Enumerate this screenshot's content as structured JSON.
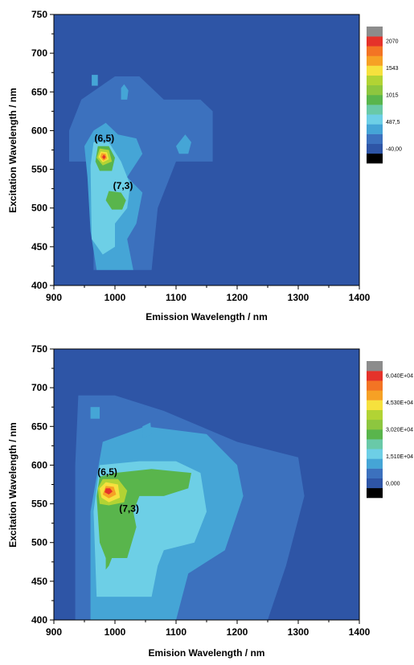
{
  "chart_data": [
    {
      "type": "heatmap",
      "title": "",
      "xlabel": "Emission Wavelength / nm",
      "ylabel": "Excitation Wavelength / nm",
      "xlim": [
        900,
        1400
      ],
      "ylim": [
        400,
        750
      ],
      "x_ticks": [
        "900",
        "1000",
        "1100",
        "1200",
        "1300",
        "1400"
      ],
      "y_ticks": [
        "400",
        "450",
        "500",
        "550",
        "600",
        "650",
        "700",
        "750"
      ],
      "colorbar": {
        "labels": [
          "2070",
          "1543",
          "1015",
          "487,5",
          "-40,00"
        ],
        "min": -40,
        "max": 2070
      },
      "peaks": [
        {
          "label": "(6,5)",
          "emission": 980,
          "excitation": 567
        },
        {
          "label": "(7,3)",
          "emission": 1000,
          "excitation": 508
        }
      ],
      "regions": [
        {
          "level": 1,
          "points": [
            [
              925,
              560
            ],
            [
              965,
              560
            ],
            [
              965,
              420
            ],
            [
              1060,
              420
            ],
            [
              1070,
              500
            ],
            [
              1100,
              560
            ],
            [
              1160,
              560
            ],
            [
              1160,
              625
            ],
            [
              1140,
              640
            ],
            [
              1080,
              640
            ],
            [
              1040,
              670
            ],
            [
              1000,
              670
            ],
            [
              945,
              640
            ],
            [
              925,
              600
            ]
          ]
        },
        {
          "level": 2,
          "points": [
            [
              955,
              540
            ],
            [
              960,
              470
            ],
            [
              970,
              420
            ],
            [
              1030,
              420
            ],
            [
              1020,
              460
            ],
            [
              1035,
              480
            ],
            [
              1045,
              520
            ],
            [
              1020,
              540
            ],
            [
              1045,
              570
            ],
            [
              1035,
              590
            ],
            [
              1005,
              595
            ],
            [
              985,
              610
            ],
            [
              965,
              600
            ],
            [
              950,
              580
            ]
          ]
        },
        {
          "level": 2,
          "points": [
            [
              962,
              658
            ],
            [
              972,
              658
            ],
            [
              972,
              672
            ],
            [
              962,
              672
            ]
          ]
        },
        {
          "level": 2,
          "points": [
            [
              1010,
              640
            ],
            [
              1020,
              640
            ],
            [
              1022,
              652
            ],
            [
              1015,
              660
            ],
            [
              1010,
              655
            ]
          ]
        },
        {
          "level": 2,
          "points": [
            [
              1100,
              580
            ],
            [
              1115,
              595
            ],
            [
              1125,
              585
            ],
            [
              1120,
              570
            ],
            [
              1105,
              570
            ]
          ]
        },
        {
          "level": 3,
          "points": [
            [
              962,
              460
            ],
            [
              980,
              440
            ],
            [
              1000,
              450
            ],
            [
              1000,
              480
            ],
            [
              1020,
              500
            ],
            [
              1025,
              530
            ],
            [
              1010,
              560
            ],
            [
              990,
              585
            ],
            [
              965,
              585
            ],
            [
              960,
              555
            ]
          ]
        },
        {
          "level": 4,
          "points": [
            [
              985,
              510
            ],
            [
              995,
              498
            ],
            [
              1012,
              498
            ],
            [
              1018,
              510
            ],
            [
              1010,
              520
            ],
            [
              990,
              522
            ]
          ]
        },
        {
          "level": 4,
          "points": [
            [
              968,
              560
            ],
            [
              975,
              548
            ],
            [
              995,
              548
            ],
            [
              1000,
              565
            ],
            [
              990,
              580
            ],
            [
              972,
              580
            ]
          ]
        },
        {
          "level": 5,
          "points": [
            [
              970,
              565
            ],
            [
              980,
              555
            ],
            [
              995,
              560
            ],
            [
              990,
              575
            ],
            [
              975,
              577
            ]
          ]
        },
        {
          "level": 6,
          "points": [
            [
              973,
              566
            ],
            [
              980,
              559
            ],
            [
              990,
              563
            ],
            [
              987,
              572
            ],
            [
              977,
              573
            ]
          ]
        },
        {
          "level": 7,
          "points": [
            [
              976,
              566
            ],
            [
              981,
              561
            ],
            [
              987,
              564
            ],
            [
              985,
              570
            ],
            [
              978,
              571
            ]
          ]
        },
        {
          "level": 8,
          "points": [
            [
              979,
              566
            ],
            [
              982,
              563
            ],
            [
              985,
              566
            ],
            [
              982,
              569
            ]
          ]
        }
      ]
    },
    {
      "type": "heatmap",
      "title": "",
      "xlabel": "Emision Wavelength / nm",
      "ylabel": "Excitation Wavelength / nm",
      "xlim": [
        900,
        1400
      ],
      "ylim": [
        400,
        750
      ],
      "x_ticks": [
        "900",
        "1000",
        "1100",
        "1200",
        "1300",
        "1400"
      ],
      "y_ticks": [
        "400",
        "450",
        "500",
        "550",
        "600",
        "650",
        "700",
        "750"
      ],
      "colorbar": {
        "labels": [
          "6,040E+04",
          "4,530E+04",
          "3,020E+04",
          "1,510E+04",
          "0,000"
        ],
        "min": 0,
        "max": 60400
      },
      "peaks": [
        {
          "label": "(6,5)",
          "emission": 985,
          "excitation": 568
        },
        {
          "label": "(7,3)",
          "emission": 1010,
          "excitation": 523
        }
      ],
      "regions": [
        {
          "level": 1,
          "points": [
            [
              935,
              400
            ],
            [
              1250,
              400
            ],
            [
              1280,
              470
            ],
            [
              1310,
              560
            ],
            [
              1300,
              610
            ],
            [
              1200,
              630
            ],
            [
              1080,
              670
            ],
            [
              1000,
              690
            ],
            [
              940,
              690
            ],
            [
              935,
              600
            ]
          ]
        },
        {
          "level": 2,
          "points": [
            [
              960,
              400
            ],
            [
              1100,
              400
            ],
            [
              1120,
              460
            ],
            [
              1180,
              490
            ],
            [
              1210,
              560
            ],
            [
              1200,
              600
            ],
            [
              1150,
              640
            ],
            [
              1050,
              650
            ],
            [
              980,
              630
            ],
            [
              960,
              540
            ]
          ]
        },
        {
          "level": 2,
          "points": [
            [
              960,
              660
            ],
            [
              975,
              660
            ],
            [
              975,
              675
            ],
            [
              960,
              675
            ]
          ]
        },
        {
          "level": 2,
          "points": [
            [
              1045,
              635
            ],
            [
              1060,
              640
            ],
            [
              1058,
              655
            ],
            [
              1045,
              650
            ]
          ]
        },
        {
          "level": 3,
          "points": [
            [
              970,
              430
            ],
            [
              1060,
              430
            ],
            [
              1070,
              470
            ],
            [
              1080,
              490
            ],
            [
              1130,
              500
            ],
            [
              1150,
              540
            ],
            [
              1140,
              590
            ],
            [
              1100,
              605
            ],
            [
              1040,
              605
            ],
            [
              975,
              600
            ],
            [
              965,
              540
            ]
          ]
        },
        {
          "level": 4,
          "points": [
            [
              975,
              500
            ],
            [
              985,
              480
            ],
            [
              1020,
              480
            ],
            [
              1035,
              520
            ],
            [
              1030,
              540
            ],
            [
              1040,
              560
            ],
            [
              1080,
              560
            ],
            [
              1120,
              570
            ],
            [
              1125,
              590
            ],
            [
              1060,
              595
            ],
            [
              1000,
              590
            ],
            [
              975,
              585
            ],
            [
              970,
              560
            ]
          ]
        },
        {
          "level": 4,
          "points": [
            [
              985,
              465
            ],
            [
              990,
              470
            ],
            [
              995,
              480
            ],
            [
              985,
              480
            ]
          ]
        },
        {
          "level": 5,
          "points": [
            [
              975,
              550
            ],
            [
              990,
              548
            ],
            [
              1015,
              552
            ],
            [
              1020,
              567
            ],
            [
              1005,
              582
            ],
            [
              980,
              582
            ],
            [
              972,
              570
            ]
          ]
        },
        {
          "level": 6,
          "points": [
            [
              978,
              558
            ],
            [
              990,
              552
            ],
            [
              1008,
              558
            ],
            [
              1005,
              575
            ],
            [
              985,
              578
            ],
            [
              975,
              570
            ]
          ]
        },
        {
          "level": 7,
          "points": [
            [
              980,
              562
            ],
            [
              990,
              557
            ],
            [
              1002,
              562
            ],
            [
              998,
              572
            ],
            [
              985,
              573
            ]
          ]
        },
        {
          "level": 8,
          "points": [
            [
              983,
              565
            ],
            [
              990,
              562
            ],
            [
              996,
              566
            ],
            [
              992,
              570
            ],
            [
              985,
              570
            ]
          ]
        }
      ]
    }
  ],
  "colors": {
    "background": "#2e55a6",
    "levels": [
      "#2e55a6",
      "#3c71be",
      "#45a5d6",
      "#6dcfe6",
      "#59b54c",
      "#b2d334",
      "#f6e13d",
      "#f6a125",
      "#e5322a"
    ],
    "colorbar_steps": [
      "#000000",
      "#2e55a6",
      "#3c71be",
      "#45a5d6",
      "#6dcfe6",
      "#69c9a8",
      "#59b54c",
      "#8dc63f",
      "#b2d334",
      "#f6e13d",
      "#f6a125",
      "#f37424",
      "#e5322a",
      "#8c8c8c"
    ]
  }
}
